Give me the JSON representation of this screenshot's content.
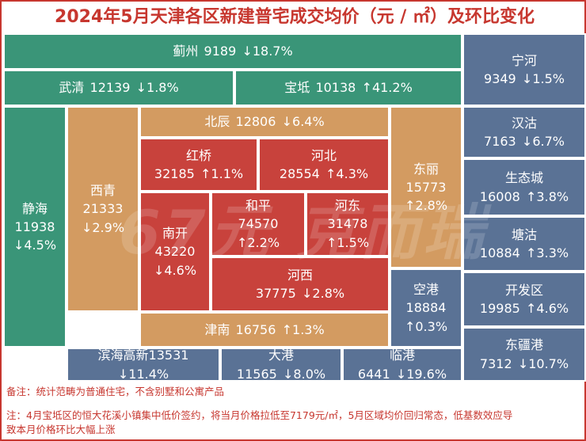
{
  "title": "2024年5月天津各区新建普宅成交均价（元 / ㎡）及环比变化",
  "watermark": "67元 克而瑞",
  "notes": {
    "line1": "备注：统计范畴为普通住宅，不含别墅和公寓产品",
    "line2": "注：4月宝坻区的恒大花溪小镇集中低价签约，将当月价格拉低至7179元/㎡，5月区域均价回归常态，低基数效应导",
    "line3": "致本月价格环比大幅上涨"
  },
  "colors": {
    "title_red": "#c7372f",
    "teal": "#3a9578",
    "slate_blue": "#5a7295",
    "orange": "#d39b61",
    "red": "#c8423c"
  },
  "chart_data": {
    "type": "treemap",
    "title": "2024年5月天津各区新建普宅成交均价（元 / ㎡）及环比变化",
    "unit": "元/㎡",
    "districts": [
      {
        "name": "蓟州",
        "price": 9189,
        "arrow": "↓",
        "change": "18.7%",
        "mom_pct": -18.7
      },
      {
        "name": "武清",
        "price": 12139,
        "arrow": "↓",
        "change": "1.8%",
        "mom_pct": -1.8
      },
      {
        "name": "宝坻",
        "price": 10138,
        "arrow": "↑",
        "change": "41.2%",
        "mom_pct": 41.2
      },
      {
        "name": "宁河",
        "price": 9349,
        "arrow": "↓",
        "change": "1.5%",
        "mom_pct": -1.5
      },
      {
        "name": "静海",
        "price": 11938,
        "arrow": "↓",
        "change": "4.5%",
        "mom_pct": -4.5
      },
      {
        "name": "西青",
        "price": 21333,
        "arrow": "↓",
        "change": "2.9%",
        "mom_pct": -2.9
      },
      {
        "name": "北辰",
        "price": 12806,
        "arrow": "↓",
        "change": "6.4%",
        "mom_pct": -6.4
      },
      {
        "name": "红桥",
        "price": 32185,
        "arrow": "↑",
        "change": "1.1%",
        "mom_pct": 1.1
      },
      {
        "name": "河北",
        "price": 28554,
        "arrow": "↑",
        "change": "4.3%",
        "mom_pct": 4.3
      },
      {
        "name": "东丽",
        "price": 15773,
        "arrow": "↑",
        "change": "2.8%",
        "mom_pct": 2.8
      },
      {
        "name": "南开",
        "price": 43220,
        "arrow": "↓",
        "change": "4.6%",
        "mom_pct": -4.6
      },
      {
        "name": "和平",
        "price": 74570,
        "arrow": "↑",
        "change": "2.2%",
        "mom_pct": 2.2
      },
      {
        "name": "河东",
        "price": 31478,
        "arrow": "↑",
        "change": "1.5%",
        "mom_pct": 1.5
      },
      {
        "name": "河西",
        "price": 37775,
        "arrow": "↓",
        "change": "2.8%",
        "mom_pct": -2.8
      },
      {
        "name": "空港",
        "price": 18884,
        "arrow": "↑",
        "change": "0.3%",
        "mom_pct": 0.3
      },
      {
        "name": "津南",
        "price": 16756,
        "arrow": "↑",
        "change": "1.3%",
        "mom_pct": 1.3
      },
      {
        "name": "汉沽",
        "price": 7163,
        "arrow": "↓",
        "change": "6.7%",
        "mom_pct": -6.7
      },
      {
        "name": "生态城",
        "price": 16008,
        "arrow": "↑",
        "change": "3.8%",
        "mom_pct": 3.8
      },
      {
        "name": "塘沽",
        "price": 10884,
        "arrow": "↑",
        "change": "3.3%",
        "mom_pct": 3.3
      },
      {
        "name": "开发区",
        "price": 19985,
        "arrow": "↑",
        "change": "4.6%",
        "mom_pct": 4.6
      },
      {
        "name": "东疆港",
        "price": 7312,
        "arrow": "↓",
        "change": "10.7%",
        "mom_pct": -10.7
      },
      {
        "name": "滨海高新",
        "price": 13531,
        "arrow": "↓",
        "change": "11.4%",
        "mom_pct": -11.4
      },
      {
        "name": "大港",
        "price": 11565,
        "arrow": "↓",
        "change": "8.0%",
        "mom_pct": -8.0
      },
      {
        "name": "临港",
        "price": 6441,
        "arrow": "↓",
        "change": "19.6%",
        "mom_pct": -19.6
      }
    ]
  }
}
